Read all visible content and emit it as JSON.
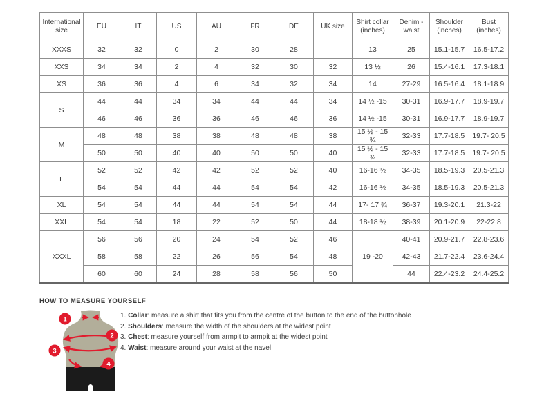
{
  "size_chart": {
    "headers": [
      "International size",
      "EU",
      "IT",
      "US",
      "AU",
      "FR",
      "DE",
      "UK size",
      "Shirt collar (inches)",
      "Denim - waist",
      "Shoulder (inches)",
      "Bust (inches)"
    ],
    "rows": [
      [
        {
          "t": "XXXS"
        },
        {
          "t": "32"
        },
        {
          "t": "32"
        },
        {
          "t": "0"
        },
        {
          "t": "2"
        },
        {
          "t": "30"
        },
        {
          "t": "28"
        },
        {
          "t": ""
        },
        {
          "t": "13"
        },
        {
          "t": "25"
        },
        {
          "t": "15.1-15.7"
        },
        {
          "t": "16.5-17.2"
        }
      ],
      [
        {
          "t": "XXS"
        },
        {
          "t": "34"
        },
        {
          "t": "34"
        },
        {
          "t": "2"
        },
        {
          "t": "4"
        },
        {
          "t": "32"
        },
        {
          "t": "30"
        },
        {
          "t": "32"
        },
        {
          "t": "13 ½"
        },
        {
          "t": "26"
        },
        {
          "t": "15.4-16.1"
        },
        {
          "t": "17.3-18.1"
        }
      ],
      [
        {
          "t": "XS"
        },
        {
          "t": "36"
        },
        {
          "t": "36"
        },
        {
          "t": "4"
        },
        {
          "t": "6"
        },
        {
          "t": "34"
        },
        {
          "t": "32"
        },
        {
          "t": "34"
        },
        {
          "t": "14"
        },
        {
          "t": "27-29"
        },
        {
          "t": "16.5-16.4"
        },
        {
          "t": "18.1-18.9"
        }
      ],
      [
        {
          "t": "S",
          "r": 2
        },
        {
          "t": "44"
        },
        {
          "t": "44"
        },
        {
          "t": "34"
        },
        {
          "t": "34"
        },
        {
          "t": "44"
        },
        {
          "t": "44"
        },
        {
          "t": "34"
        },
        {
          "t": "14 ½ -15"
        },
        {
          "t": "30-31"
        },
        {
          "t": "16.9-17.7"
        },
        {
          "t": "18.9-19.7"
        }
      ],
      [
        {
          "t": "46"
        },
        {
          "t": "46"
        },
        {
          "t": "36"
        },
        {
          "t": "36"
        },
        {
          "t": "46"
        },
        {
          "t": "46"
        },
        {
          "t": "36"
        },
        {
          "t": "14 ½ -15"
        },
        {
          "t": "30-31"
        },
        {
          "t": "16.9-17.7"
        },
        {
          "t": "18.9-19.7"
        }
      ],
      [
        {
          "t": "M",
          "r": 2
        },
        {
          "t": "48"
        },
        {
          "t": "48"
        },
        {
          "t": "38"
        },
        {
          "t": "38"
        },
        {
          "t": "48"
        },
        {
          "t": "48"
        },
        {
          "t": "38"
        },
        {
          "t": "15 ½ - 15 ¾"
        },
        {
          "t": "32-33"
        },
        {
          "t": "17.7-18.5"
        },
        {
          "t": "19.7- 20.5"
        }
      ],
      [
        {
          "t": "50"
        },
        {
          "t": "50"
        },
        {
          "t": "40"
        },
        {
          "t": "40"
        },
        {
          "t": "50"
        },
        {
          "t": "50"
        },
        {
          "t": "40"
        },
        {
          "t": "15 ½ - 15 ¾"
        },
        {
          "t": "32-33"
        },
        {
          "t": "17.7-18.5"
        },
        {
          "t": "19.7- 20.5"
        }
      ],
      [
        {
          "t": "L",
          "r": 2
        },
        {
          "t": "52"
        },
        {
          "t": "52"
        },
        {
          "t": "42"
        },
        {
          "t": "42"
        },
        {
          "t": "52"
        },
        {
          "t": "52"
        },
        {
          "t": "40"
        },
        {
          "t": "16-16 ½"
        },
        {
          "t": "34-35"
        },
        {
          "t": "18.5-19.3"
        },
        {
          "t": "20.5-21.3"
        }
      ],
      [
        {
          "t": "54"
        },
        {
          "t": "54"
        },
        {
          "t": "44"
        },
        {
          "t": "44"
        },
        {
          "t": "54"
        },
        {
          "t": "54"
        },
        {
          "t": "42"
        },
        {
          "t": "16-16 ½"
        },
        {
          "t": "34-35"
        },
        {
          "t": "18.5-19.3"
        },
        {
          "t": "20.5-21.3"
        }
      ],
      [
        {
          "t": "XL"
        },
        {
          "t": "54"
        },
        {
          "t": "54"
        },
        {
          "t": "44"
        },
        {
          "t": "44"
        },
        {
          "t": "54"
        },
        {
          "t": "54"
        },
        {
          "t": "44"
        },
        {
          "t": "17- 17 ¾"
        },
        {
          "t": "36-37"
        },
        {
          "t": "19.3-20.1"
        },
        {
          "t": "21.3-22"
        }
      ],
      [
        {
          "t": "XXL"
        },
        {
          "t": "54"
        },
        {
          "t": "54"
        },
        {
          "t": "18"
        },
        {
          "t": "22"
        },
        {
          "t": "52"
        },
        {
          "t": "50"
        },
        {
          "t": "44"
        },
        {
          "t": "18-18 ½"
        },
        {
          "t": "38-39"
        },
        {
          "t": "20.1-20.9"
        },
        {
          "t": "22-22.8"
        }
      ],
      [
        {
          "t": "XXXL",
          "r": 3
        },
        {
          "t": "56"
        },
        {
          "t": "56"
        },
        {
          "t": "20"
        },
        {
          "t": "24"
        },
        {
          "t": "54"
        },
        {
          "t": "52"
        },
        {
          "t": "46"
        },
        {
          "t": "19 -20",
          "r": 3
        },
        {
          "t": "40-41"
        },
        {
          "t": "20.9-21.7"
        },
        {
          "t": "22.8-23.6"
        }
      ],
      [
        {
          "t": "58"
        },
        {
          "t": "58"
        },
        {
          "t": "22"
        },
        {
          "t": "26"
        },
        {
          "t": "56"
        },
        {
          "t": "54"
        },
        {
          "t": "48"
        },
        {
          "t": "42-43"
        },
        {
          "t": "21.7-22.4"
        },
        {
          "t": "23.6-24.4"
        }
      ],
      [
        {
          "t": "60"
        },
        {
          "t": "60"
        },
        {
          "t": "24"
        },
        {
          "t": "28"
        },
        {
          "t": "58"
        },
        {
          "t": "56"
        },
        {
          "t": "50"
        },
        {
          "t": "44"
        },
        {
          "t": "22.4-23.2"
        },
        {
          "t": "24.4-25.2"
        }
      ]
    ]
  },
  "measure_section": {
    "title": "HOW TO MEASURE YOURSELF",
    "badges": [
      "1",
      "2",
      "3",
      "4"
    ],
    "items": [
      {
        "num": "1.",
        "label": "Collar",
        "rest": ": measure a shirt that fits you from the centre of the button to the end of the buttonhole"
      },
      {
        "num": "2.",
        "label": "Shoulders",
        "rest": ": measure the width of the shoulders at the widest point"
      },
      {
        "num": "3.",
        "label": "Chest",
        "rest": ": measure yourself from armpit to armpit at the widest point"
      },
      {
        "num": "4.",
        "label": "Waist",
        "rest": ": measure around your waist at the navel"
      }
    ]
  },
  "colors": {
    "accent_red": "#e11b2d",
    "figure_body": "#b2ae9a",
    "figure_shorts": "#1b1b1b",
    "table_border": "#8f8f8f",
    "text": "#3c3c3c"
  }
}
